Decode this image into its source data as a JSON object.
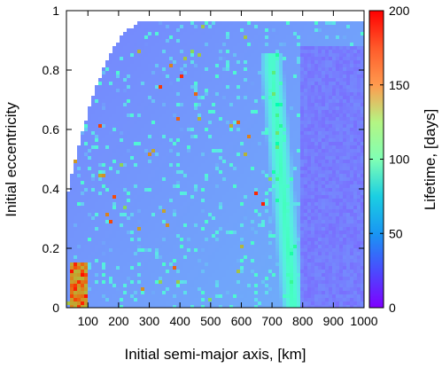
{
  "chart_data": {
    "type": "heatmap",
    "xlabel": "Initial semi-major axis, [km]",
    "ylabel": "Initial eccentricity",
    "colorbar_label": "Lifetime, [days]",
    "xlim": [
      30,
      1000
    ],
    "ylim": [
      0,
      1
    ],
    "clim": [
      0,
      200
    ],
    "x_ticks": [
      100,
      200,
      300,
      400,
      500,
      600,
      700,
      800,
      900,
      1000
    ],
    "y_ticks": [
      0,
      0.2,
      0.4,
      0.6,
      0.8,
      1
    ],
    "colorbar_ticks": [
      0,
      50,
      100,
      150,
      200
    ],
    "x_tick_labels": [
      "100",
      "200",
      "300",
      "400",
      "500",
      "600",
      "700",
      "800",
      "900",
      "1000"
    ],
    "y_tick_labels": [
      "0",
      "0.2",
      "0.4",
      "0.6",
      "0.8",
      "1"
    ],
    "colorbar_tick_labels": [
      "0",
      "50",
      "100",
      "150",
      "200"
    ],
    "colormap": "rainbow",
    "features": [
      {
        "region": "dominant background",
        "lifetime_days": 20
      },
      {
        "region": "long-lived streak",
        "a_km_at_e0": 770,
        "a_km_at_e08": 700,
        "lifetime_days": 90
      },
      {
        "region": "long-lived spot",
        "a_km": [
          45,
          90
        ],
        "e": [
          0,
          0.14
        ],
        "lifetime_days": 200
      },
      {
        "region": "unbound area (blank)",
        "boundary": "upper-left curved edge"
      }
    ]
  }
}
